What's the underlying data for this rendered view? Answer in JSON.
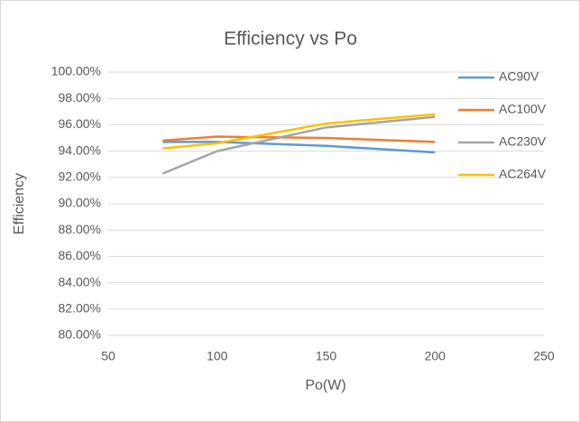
{
  "chart_data": {
    "type": "line",
    "title": "Efficiency vs Po",
    "x_label": "Po(W)",
    "y_label": "Efficiency",
    "x": [
      75,
      100,
      150,
      200
    ],
    "series": [
      {
        "name": "AC90V",
        "color": "#5b9bd5",
        "values": [
          94.7,
          94.7,
          94.4,
          93.9
        ]
      },
      {
        "name": "AC100V",
        "color": "#ed7d31",
        "values": [
          94.8,
          95.1,
          95.0,
          94.7
        ]
      },
      {
        "name": "AC230V",
        "color": "#a5a5a5",
        "values": [
          92.3,
          94.0,
          95.8,
          96.6
        ]
      },
      {
        "name": "AC264V",
        "color": "#ffc000",
        "values": [
          94.2,
          94.6,
          96.1,
          96.8
        ]
      }
    ],
    "xlim": [
      50,
      250
    ],
    "xticks": [
      50,
      100,
      150,
      200,
      250
    ],
    "ylim": [
      80,
      100
    ],
    "yticks": [
      {
        "value": 80,
        "label": "80.00%"
      },
      {
        "value": 82,
        "label": "82.00%"
      },
      {
        "value": 84,
        "label": "84.00%"
      },
      {
        "value": 86,
        "label": "86.00%"
      },
      {
        "value": 88,
        "label": "88.00%"
      },
      {
        "value": 90,
        "label": "90.00%"
      },
      {
        "value": 92,
        "label": "92.00%"
      },
      {
        "value": 94,
        "label": "94.00%"
      },
      {
        "value": 96,
        "label": "96.00%"
      },
      {
        "value": 98,
        "label": "98.00%"
      },
      {
        "value": 100,
        "label": "100.00%"
      }
    ],
    "grid": true,
    "legend": "right"
  }
}
